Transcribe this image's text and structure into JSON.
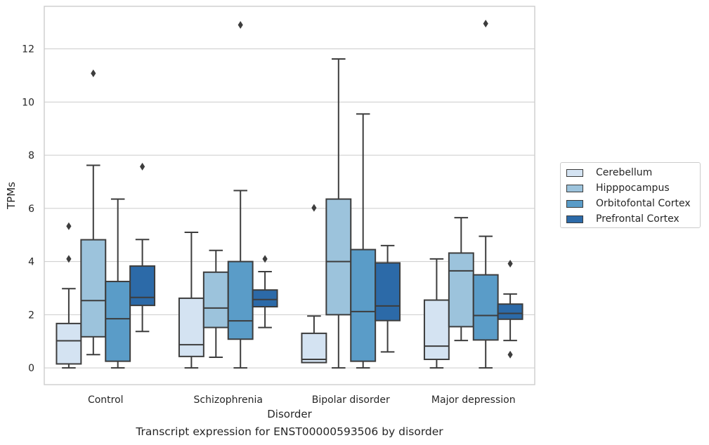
{
  "chart_data": {
    "type": "box",
    "title": "",
    "caption": "Transcript expression for ENST00000593506 by disorder",
    "xlabel": "Disorder",
    "ylabel": "TPMs",
    "ylim": [
      -0.63,
      13.6
    ],
    "yticks": [
      0,
      2,
      4,
      6,
      8,
      10,
      12
    ],
    "grid": "horizontal",
    "legend_position": "right",
    "categories": [
      "Control",
      "Schizophrenia",
      "Bipolar disorder",
      "Major depression"
    ],
    "series": [
      {
        "name": "Cerebellum",
        "color": "#d4e3f2",
        "boxes": [
          {
            "whislo": 0.0,
            "q1": 0.15,
            "med": 1.02,
            "q3": 1.67,
            "whishi": 2.98,
            "fliers": [
              4.1,
              5.33
            ]
          },
          {
            "whislo": 0.0,
            "q1": 0.43,
            "med": 0.87,
            "q3": 2.62,
            "whishi": 5.1,
            "fliers": []
          },
          {
            "whislo": 0.2,
            "q1": 0.2,
            "med": 0.32,
            "q3": 1.3,
            "whishi": 1.95,
            "fliers": [
              6.02
            ]
          },
          {
            "whislo": 0.0,
            "q1": 0.32,
            "med": 0.82,
            "q3": 2.55,
            "whishi": 4.1,
            "fliers": []
          }
        ]
      },
      {
        "name": "Hipppocampus",
        "color": "#9cc3dc",
        "boxes": [
          {
            "whislo": 0.5,
            "q1": 1.17,
            "med": 2.53,
            "q3": 4.82,
            "whishi": 7.62,
            "fliers": [
              11.08
            ]
          },
          {
            "whislo": 0.4,
            "q1": 1.52,
            "med": 2.25,
            "q3": 3.6,
            "whishi": 4.42,
            "fliers": []
          },
          {
            "whislo": 0.0,
            "q1": 2.0,
            "med": 4.0,
            "q3": 6.35,
            "whishi": 11.62,
            "fliers": []
          },
          {
            "whislo": 1.03,
            "q1": 1.55,
            "med": 3.65,
            "q3": 4.32,
            "whishi": 5.65,
            "fliers": []
          }
        ]
      },
      {
        "name": "Orbitofontal Cortex",
        "color": "#5a9cc8",
        "boxes": [
          {
            "whislo": 0.0,
            "q1": 0.25,
            "med": 1.85,
            "q3": 3.25,
            "whishi": 6.35,
            "fliers": []
          },
          {
            "whislo": 0.0,
            "q1": 1.08,
            "med": 1.77,
            "q3": 4.0,
            "whishi": 6.67,
            "fliers": [
              12.9
            ]
          },
          {
            "whislo": 0.0,
            "q1": 0.25,
            "med": 2.12,
            "q3": 4.45,
            "whishi": 9.55,
            "fliers": []
          },
          {
            "whislo": 0.0,
            "q1": 1.05,
            "med": 1.97,
            "q3": 3.5,
            "whishi": 4.95,
            "fliers": [
              12.95
            ]
          }
        ]
      },
      {
        "name": "Prefrontal Cortex",
        "color": "#2c6aa8",
        "boxes": [
          {
            "whislo": 1.37,
            "q1": 2.35,
            "med": 2.65,
            "q3": 3.83,
            "whishi": 4.83,
            "fliers": [
              7.57
            ]
          },
          {
            "whislo": 1.52,
            "q1": 2.3,
            "med": 2.57,
            "q3": 2.93,
            "whishi": 3.62,
            "fliers": [
              4.1
            ]
          },
          {
            "whislo": 0.6,
            "q1": 1.78,
            "med": 2.33,
            "q3": 3.95,
            "whishi": 4.6,
            "fliers": []
          },
          {
            "whislo": 1.03,
            "q1": 1.83,
            "med": 2.05,
            "q3": 2.4,
            "whishi": 2.78,
            "fliers": [
              0.5,
              3.92
            ]
          }
        ]
      }
    ]
  }
}
